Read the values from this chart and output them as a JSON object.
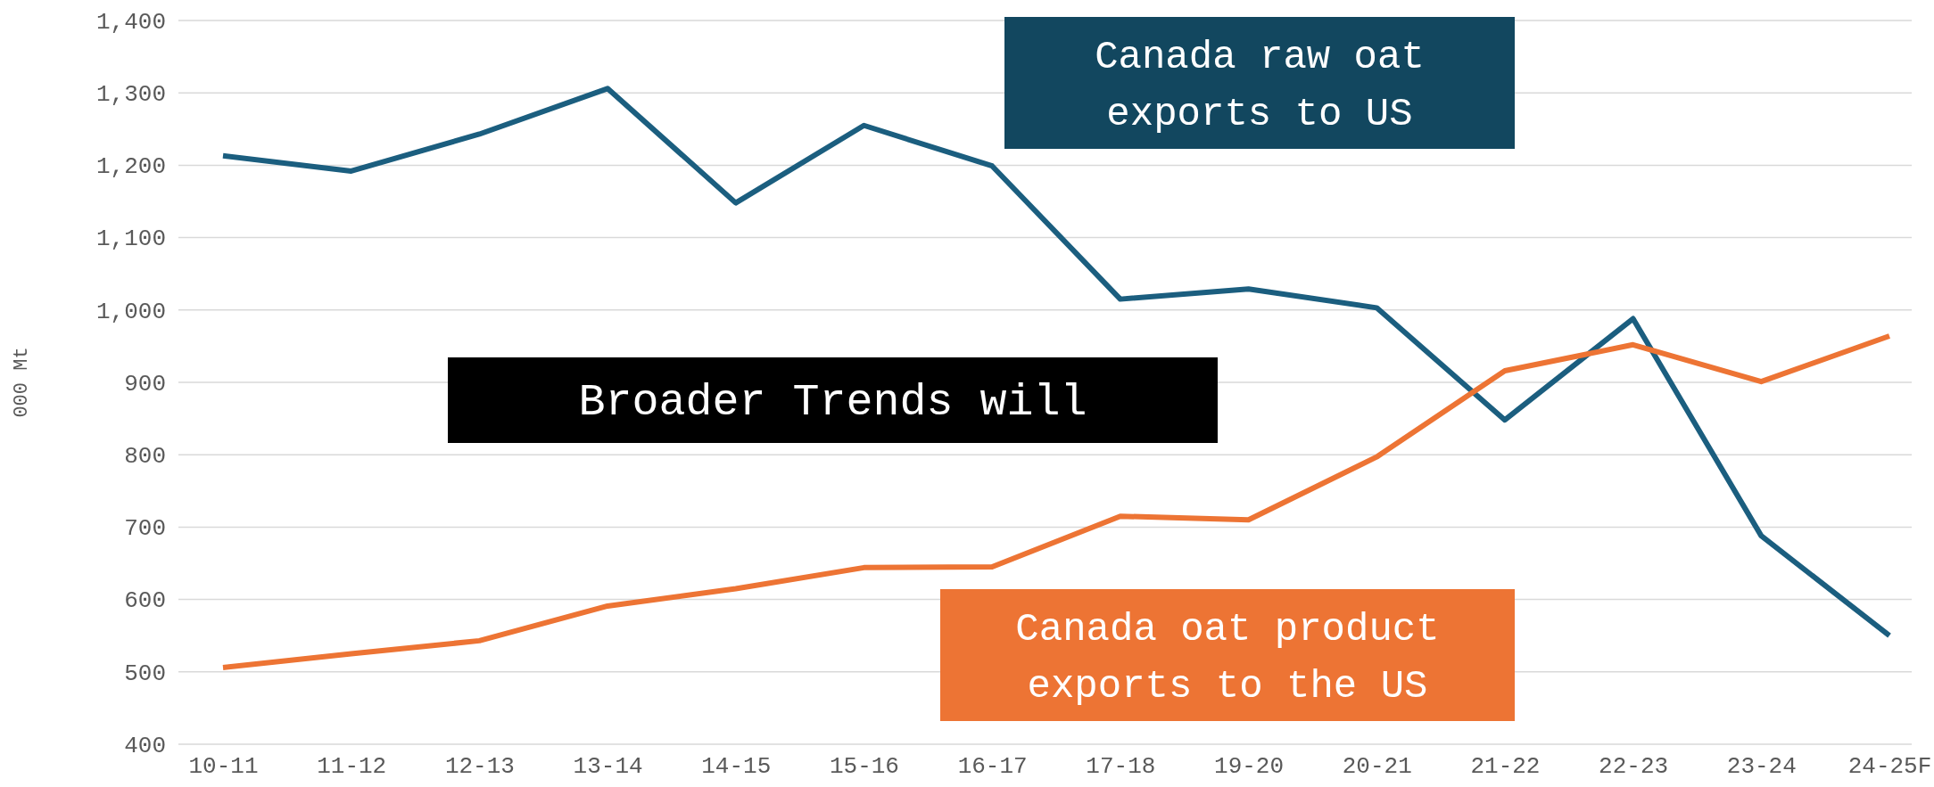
{
  "chart_data": {
    "type": "line",
    "ylabel": "000 Mt",
    "categories": [
      "10-11",
      "11-12",
      "12-13",
      "13-14",
      "14-15",
      "15-16",
      "16-17",
      "17-18",
      "19-20",
      "20-21",
      "21-22",
      "22-23",
      "23-24",
      "24-25F"
    ],
    "series": [
      {
        "name": "Canada raw oat exports to US",
        "color": "#1b5e7f",
        "values": [
          1213,
          1192,
          1243,
          1306,
          1148,
          1255,
          1199,
          1015,
          1029,
          1003,
          848,
          988,
          688,
          550
        ]
      },
      {
        "name": "Canada oat product exports to the US",
        "color": "#ed7434",
        "values": [
          506,
          525,
          543,
          591,
          615,
          644,
          645,
          715,
          710,
          797,
          916,
          952,
          901,
          964
        ]
      }
    ],
    "ylim": [
      400,
      1400
    ],
    "yticks": [
      {
        "value": 400,
        "label": "400"
      },
      {
        "value": 500,
        "label": "500"
      },
      {
        "value": 600,
        "label": "600"
      },
      {
        "value": 700,
        "label": "700"
      },
      {
        "value": 800,
        "label": "800"
      },
      {
        "value": 900,
        "label": "900"
      },
      {
        "value": 1000,
        "label": "1,000"
      },
      {
        "value": 1100,
        "label": "1,100"
      },
      {
        "value": 1200,
        "label": "1,200"
      },
      {
        "value": 1300,
        "label": "1,300"
      },
      {
        "value": 1400,
        "label": "1,400"
      }
    ],
    "grid": "y",
    "marker": "none",
    "line_style": "solid",
    "annotations": [
      "Broader Trends will"
    ]
  }
}
